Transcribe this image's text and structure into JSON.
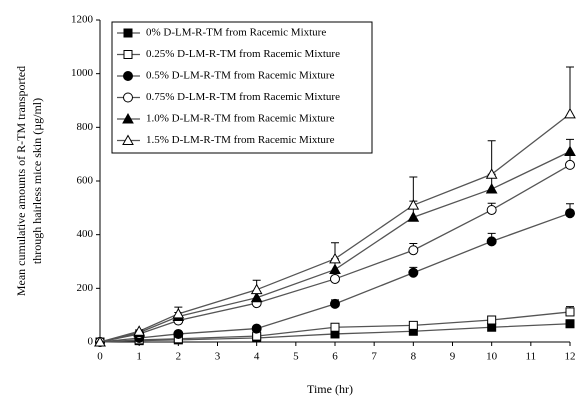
{
  "chart_data": {
    "type": "line",
    "xlabel": "Time (hr)",
    "ylabel": [
      "Mean cumulative amounts of R-TM transported",
      "through hairless mice skin (µg/ml)"
    ],
    "x": [
      0,
      1,
      2,
      4,
      6,
      8,
      10,
      12
    ],
    "xlim": [
      0,
      12
    ],
    "xticks": [
      0,
      1,
      2,
      3,
      4,
      5,
      6,
      7,
      8,
      9,
      10,
      11,
      12
    ],
    "ylim": [
      0,
      1200
    ],
    "yticks": [
      0,
      200,
      400,
      600,
      800,
      1000,
      1200
    ],
    "legend": "top-left",
    "series": [
      {
        "name": "0% D-LM-R-TM from Racemic Mixture",
        "color": "#555555",
        "marker": "square",
        "filled": true,
        "values": [
          0,
          5,
          8,
          15,
          30,
          40,
          55,
          68
        ],
        "errors": [
          0,
          1,
          2,
          3,
          5,
          5,
          5,
          8
        ]
      },
      {
        "name": "0.25% D-LM-R-TM from Racemic Mixture",
        "color": "#555555",
        "marker": "square",
        "filled": false,
        "values": [
          0,
          8,
          12,
          22,
          55,
          62,
          82,
          112
        ],
        "errors": [
          0,
          2,
          3,
          5,
          8,
          10,
          10,
          20
        ]
      },
      {
        "name": "0.5% D-LM-R-TM from Racemic Mixture",
        "color": "#555555",
        "marker": "circle",
        "filled": true,
        "values": [
          0,
          15,
          30,
          50,
          142,
          258,
          375,
          480
        ],
        "errors": [
          0,
          2,
          5,
          8,
          15,
          20,
          30,
          35
        ]
      },
      {
        "name": "0.75% D-LM-R-TM from Racemic Mixture",
        "color": "#555555",
        "marker": "circle",
        "filled": false,
        "values": [
          0,
          30,
          80,
          145,
          235,
          342,
          492,
          660
        ],
        "errors": [
          0,
          3,
          10,
          15,
          20,
          25,
          25,
          40
        ]
      },
      {
        "name": "1.0% D-LM-R-TM from Racemic Mixture",
        "color": "#555555",
        "marker": "triangle",
        "filled": true,
        "values": [
          0,
          35,
          95,
          165,
          270,
          465,
          570,
          710
        ],
        "errors": [
          0,
          5,
          15,
          20,
          40,
          60,
          55,
          45
        ]
      },
      {
        "name": "1.5% D-LM-R-TM from Racemic Mixture",
        "color": "#555555",
        "marker": "triangle",
        "filled": false,
        "values": [
          0,
          40,
          105,
          195,
          310,
          510,
          625,
          850
        ],
        "errors": [
          0,
          5,
          25,
          35,
          60,
          105,
          125,
          175
        ]
      }
    ]
  }
}
